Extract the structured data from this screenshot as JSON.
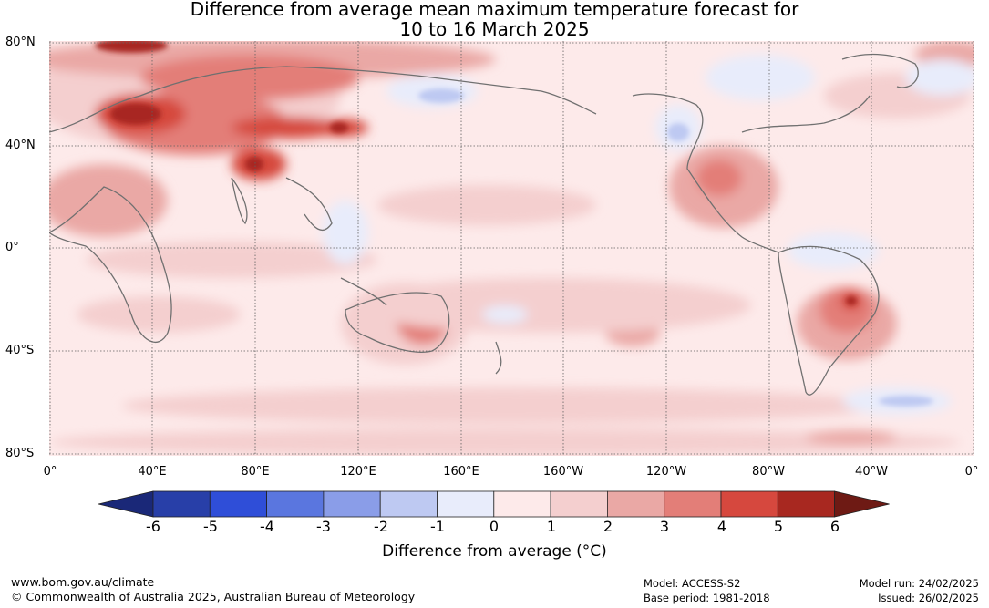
{
  "title": {
    "line1": "Difference from average mean maximum temperature forecast for",
    "line2": "10 to 16 March 2025"
  },
  "map": {
    "lat_labels": [
      "80°N",
      "40°N",
      "0°",
      "40°S",
      "80°S"
    ],
    "lon_labels": [
      "0°",
      "40°E",
      "80°E",
      "120°E",
      "160°E",
      "160°W",
      "120°W",
      "80°W",
      "40°W",
      "0°"
    ],
    "grid": true
  },
  "colorbar": {
    "ticks": [
      "-6",
      "-5",
      "-4",
      "-3",
      "-2",
      "-1",
      "0",
      "1",
      "2",
      "3",
      "4",
      "5",
      "6"
    ],
    "colors": [
      "#283fa8",
      "#2f4ed8",
      "#5a76df",
      "#8a9de8",
      "#bec9f2",
      "#e8ecfb",
      "#fdeaea",
      "#f4cfcf",
      "#eaa8a5",
      "#e37e78",
      "#d6483e",
      "#a82820"
    ],
    "under_color": "#1a2878",
    "over_color": "#6e1a14",
    "label": "Difference from average (°C)"
  },
  "footer": {
    "url": "www.bom.gov.au/climate",
    "copyright": "© Commonwealth of Australia 2025, Australian Bureau of Meteorology",
    "model": "Model: ACCESS-S2",
    "base_period": "Base period: 1981-2018",
    "model_run": "Model run: 24/02/2025",
    "issued": "Issued: 26/02/2025"
  }
}
